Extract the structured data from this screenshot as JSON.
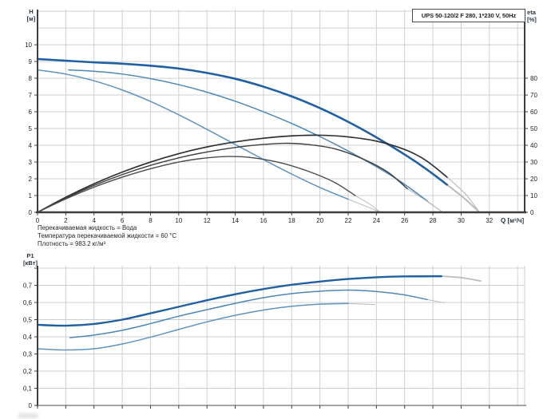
{
  "header": {
    "title_box": "UPS 50-120/2 F 280, 1*230 V, 50Hz"
  },
  "labels": {
    "h_top": "H",
    "h_bot": "[м]",
    "eta_top": "eta",
    "eta_bot": "[%]",
    "q": "Q [м³/ч]",
    "p_top": "P1",
    "p_bot": "[кВт]"
  },
  "annotations": {
    "lines": [
      "Перекачиваемая жидкость = Вода",
      "Температура перекачиваемой жидкости = 60 °C",
      "Плотность = 983.2 кг/м³"
    ]
  },
  "colors": {
    "grid": "#cdd0d3",
    "axis_dark": "#3b3e41",
    "axis_light": "#6b6e71",
    "tick_text": "#212426",
    "tail": "#b7bbbd",
    "blue_main": "#1f60a2",
    "blue_mid": "#4d87b5",
    "blue_light": "#5e93bf"
  },
  "chart_data": [
    {
      "type": "line",
      "id": "hq-eta-chart",
      "title": "UPS 50-120/2 F 280, 1*230 V, 50Hz",
      "xlabel": "Q [м³/ч]",
      "ylabel": "H [м]",
      "y2label": "eta [%]",
      "xlim": [
        0,
        34.5
      ],
      "ylim": [
        0,
        12.1
      ],
      "y2lim": [
        0,
        121
      ],
      "grid": {
        "x_step": 2,
        "x_max": 34,
        "y_step": 1,
        "y_max": 12,
        "x_edge": false
      },
      "axes": [
        {
          "side": "left",
          "width": 2,
          "color": "#3b3e41"
        },
        {
          "side": "right",
          "width": 2,
          "color": "#3b3e41"
        },
        {
          "side": "bottom",
          "width": 2.4,
          "color": "#3b3e41"
        }
      ],
      "x_ticks": {
        "values": [
          0,
          2,
          4,
          6,
          8,
          10,
          12,
          14,
          16,
          18,
          20,
          22,
          24,
          26,
          28,
          30,
          32
        ],
        "labels": [
          "0",
          "2",
          "4",
          "6",
          "8",
          "10",
          "12",
          "14",
          "16",
          "18",
          "20",
          "22",
          "24",
          "26",
          "28",
          "30",
          "32"
        ]
      },
      "y_ticks": {
        "values": [
          0,
          1,
          2,
          3,
          4,
          5,
          6,
          7,
          8,
          9,
          10
        ],
        "labels": [
          "0",
          "1",
          "2",
          "3",
          "4",
          "5",
          "6",
          "7",
          "8",
          "9",
          "10"
        ]
      },
      "y2_ticks": {
        "scale": 0.1,
        "values": [
          0,
          10,
          20,
          30,
          40,
          50,
          60,
          70,
          80
        ],
        "labels": [
          "0",
          "10",
          "20",
          "30",
          "40",
          "50",
          "60",
          "70",
          "80"
        ]
      },
      "series": [
        {
          "name": "head-speed-3",
          "color": "#1f60a2",
          "width": 2.6,
          "scale": 1,
          "points": [
            [
              0,
              9.15
            ],
            [
              2,
              9.05
            ],
            [
              4,
              8.95
            ],
            [
              6,
              8.87
            ],
            [
              8,
              8.75
            ],
            [
              10,
              8.58
            ],
            [
              12,
              8.32
            ],
            [
              14,
              7.97
            ],
            [
              16,
              7.5
            ],
            [
              18,
              6.92
            ],
            [
              20,
              6.22
            ],
            [
              22,
              5.4
            ],
            [
              24,
              4.47
            ],
            [
              26,
              3.45
            ],
            [
              27.5,
              2.6
            ],
            [
              29,
              1.65
            ]
          ],
          "tail": [
            [
              29,
              1.65
            ],
            [
              30.2,
              0.85
            ],
            [
              31.3,
              0
            ]
          ]
        },
        {
          "name": "head-speed-2",
          "color": "#4d87b5",
          "width": 1.5,
          "scale": 1,
          "points": [
            [
              2.2,
              8.5
            ],
            [
              4,
              8.42
            ],
            [
              6,
              8.25
            ],
            [
              8,
              7.98
            ],
            [
              10,
              7.62
            ],
            [
              12,
              7.17
            ],
            [
              14,
              6.63
            ],
            [
              16,
              6.0
            ],
            [
              18,
              5.3
            ],
            [
              20,
              4.52
            ],
            [
              22,
              3.66
            ],
            [
              24,
              2.72
            ],
            [
              25.5,
              1.95
            ],
            [
              26.6,
              1.3
            ],
            [
              27.6,
              0.68
            ]
          ],
          "tail": [
            [
              27.6,
              0.68
            ],
            [
              28.7,
              0
            ]
          ]
        },
        {
          "name": "head-speed-1",
          "color": "#5e93bf",
          "width": 1.5,
          "scale": 1,
          "points": [
            [
              0,
              8.5
            ],
            [
              2,
              8.25
            ],
            [
              4,
              7.85
            ],
            [
              6,
              7.3
            ],
            [
              8,
              6.62
            ],
            [
              10,
              5.82
            ],
            [
              12,
              4.95
            ],
            [
              14,
              4.05
            ],
            [
              16,
              3.15
            ],
            [
              18,
              2.28
            ],
            [
              20,
              1.48
            ],
            [
              22,
              0.78
            ]
          ],
          "tail": [
            [
              22,
              0.78
            ],
            [
              23.2,
              0.38
            ],
            [
              24.3,
              0
            ]
          ]
        },
        {
          "name": "eta-speed-3",
          "color": "#2e3032",
          "width": 1.7,
          "scale": 0.1,
          "points": [
            [
              0,
              0
            ],
            [
              2,
              9
            ],
            [
              4,
              17
            ],
            [
              6,
              24
            ],
            [
              8,
              30
            ],
            [
              10,
              35
            ],
            [
              12,
              39
            ],
            [
              14,
              42
            ],
            [
              16,
              44.2
            ],
            [
              18,
              45.6
            ],
            [
              20,
              46
            ],
            [
              22,
              45
            ],
            [
              24,
              42.5
            ],
            [
              26,
              37.5
            ],
            [
              27.5,
              31
            ],
            [
              29,
              21
            ]
          ],
          "tail": [
            [
              29,
              21
            ],
            [
              30.3,
              11
            ],
            [
              31.3,
              0
            ]
          ]
        },
        {
          "name": "eta-speed-2",
          "color": "#3c3e40",
          "width": 1.4,
          "scale": 0.1,
          "points": [
            [
              0,
              0
            ],
            [
              2,
              8.5
            ],
            [
              4,
              16
            ],
            [
              6,
              22.5
            ],
            [
              8,
              28
            ],
            [
              10,
              32.5
            ],
            [
              12,
              36
            ],
            [
              14,
              38.7
            ],
            [
              16,
              40.5
            ],
            [
              17.5,
              41.2
            ],
            [
              19,
              40.6
            ],
            [
              21,
              38
            ],
            [
              23,
              32
            ],
            [
              24.8,
              24
            ],
            [
              26.2,
              14
            ]
          ],
          "tail": [
            [
              26.2,
              14
            ],
            [
              27.5,
              7
            ],
            [
              28.7,
              0
            ]
          ]
        },
        {
          "name": "eta-speed-1",
          "color": "#4a4c4e",
          "width": 1.4,
          "scale": 0.1,
          "points": [
            [
              0,
              0
            ],
            [
              2,
              8
            ],
            [
              4,
              15
            ],
            [
              6,
              21
            ],
            [
              8,
              26
            ],
            [
              10,
              30
            ],
            [
              12,
              32.5
            ],
            [
              13.5,
              33.3
            ],
            [
              15,
              32.8
            ],
            [
              17,
              30
            ],
            [
              19,
              25
            ],
            [
              21,
              18
            ],
            [
              22.5,
              10
            ]
          ],
          "tail": [
            [
              22.5,
              10
            ],
            [
              23.5,
              5
            ],
            [
              24.3,
              0
            ]
          ]
        }
      ]
    },
    {
      "type": "line",
      "id": "p1-chart",
      "title": "",
      "xlabel": "Q [м³/ч]",
      "ylabel": "P1 [кВт]",
      "xlim": [
        0,
        34.5
      ],
      "ylim": [
        0,
        0.814
      ],
      "grid": {
        "x_step": 2,
        "x_max": 34,
        "y_step": 0.1,
        "y_max": 0.8,
        "x_edge": true
      },
      "axes": [
        {
          "side": "left",
          "width": 2,
          "color": "#3b3e41"
        },
        {
          "side": "bottom",
          "width": 1.2,
          "color": "#6b6e71"
        }
      ],
      "x_ticks": {
        "values": [
          0,
          2,
          4,
          6,
          8,
          10,
          12,
          14,
          16,
          18,
          20,
          22,
          24,
          26,
          28,
          30,
          32
        ],
        "labels": [
          "",
          "",
          "",
          "",
          "",
          "",
          "",
          "",
          "",
          "",
          "",
          "",
          "",
          "",
          "",
          "",
          ""
        ]
      },
      "y_ticks": {
        "values": [
          0,
          0.1,
          0.2,
          0.3,
          0.4,
          0.5,
          0.6,
          0.7,
          0.8
        ],
        "labels": [
          "0",
          "0,1",
          "0,2",
          "0,3",
          "0,4",
          "0,5",
          "0,6",
          "0,7",
          ""
        ]
      },
      "series": [
        {
          "name": "power-speed-3",
          "color": "#1f60a2",
          "width": 2.4,
          "scale": 1,
          "points": [
            [
              0,
              0.47
            ],
            [
              2,
              0.465
            ],
            [
              4,
              0.475
            ],
            [
              6,
              0.5
            ],
            [
              8,
              0.537
            ],
            [
              10,
              0.575
            ],
            [
              12,
              0.613
            ],
            [
              14,
              0.648
            ],
            [
              16,
              0.678
            ],
            [
              18,
              0.703
            ],
            [
              20,
              0.722
            ],
            [
              22,
              0.737
            ],
            [
              24,
              0.747
            ],
            [
              26,
              0.752
            ],
            [
              28.6,
              0.753
            ]
          ],
          "tail": [
            [
              28.6,
              0.753
            ],
            [
              30,
              0.745
            ],
            [
              31.4,
              0.725
            ]
          ]
        },
        {
          "name": "power-speed-2",
          "color": "#4d87b5",
          "width": 1.5,
          "scale": 1,
          "points": [
            [
              2.3,
              0.395
            ],
            [
              4,
              0.41
            ],
            [
              6,
              0.438
            ],
            [
              8,
              0.477
            ],
            [
              10,
              0.52
            ],
            [
              12,
              0.558
            ],
            [
              14,
              0.595
            ],
            [
              16,
              0.628
            ],
            [
              18,
              0.652
            ],
            [
              20,
              0.666
            ],
            [
              22,
              0.672
            ],
            [
              24,
              0.664
            ],
            [
              26,
              0.644
            ],
            [
              27.6,
              0.617
            ]
          ],
          "tail": [
            [
              27.6,
              0.617
            ],
            [
              28.8,
              0.598
            ]
          ]
        },
        {
          "name": "power-speed-1",
          "color": "#5e93bf",
          "width": 1.5,
          "scale": 1,
          "points": [
            [
              0,
              0.33
            ],
            [
              2,
              0.323
            ],
            [
              4,
              0.33
            ],
            [
              6,
              0.358
            ],
            [
              8,
              0.398
            ],
            [
              10,
              0.443
            ],
            [
              12,
              0.487
            ],
            [
              14,
              0.525
            ],
            [
              16,
              0.556
            ],
            [
              18,
              0.578
            ],
            [
              20,
              0.59
            ],
            [
              22,
              0.594
            ]
          ],
          "tail": [
            [
              22,
              0.594
            ],
            [
              23.9,
              0.588
            ]
          ]
        }
      ]
    }
  ]
}
